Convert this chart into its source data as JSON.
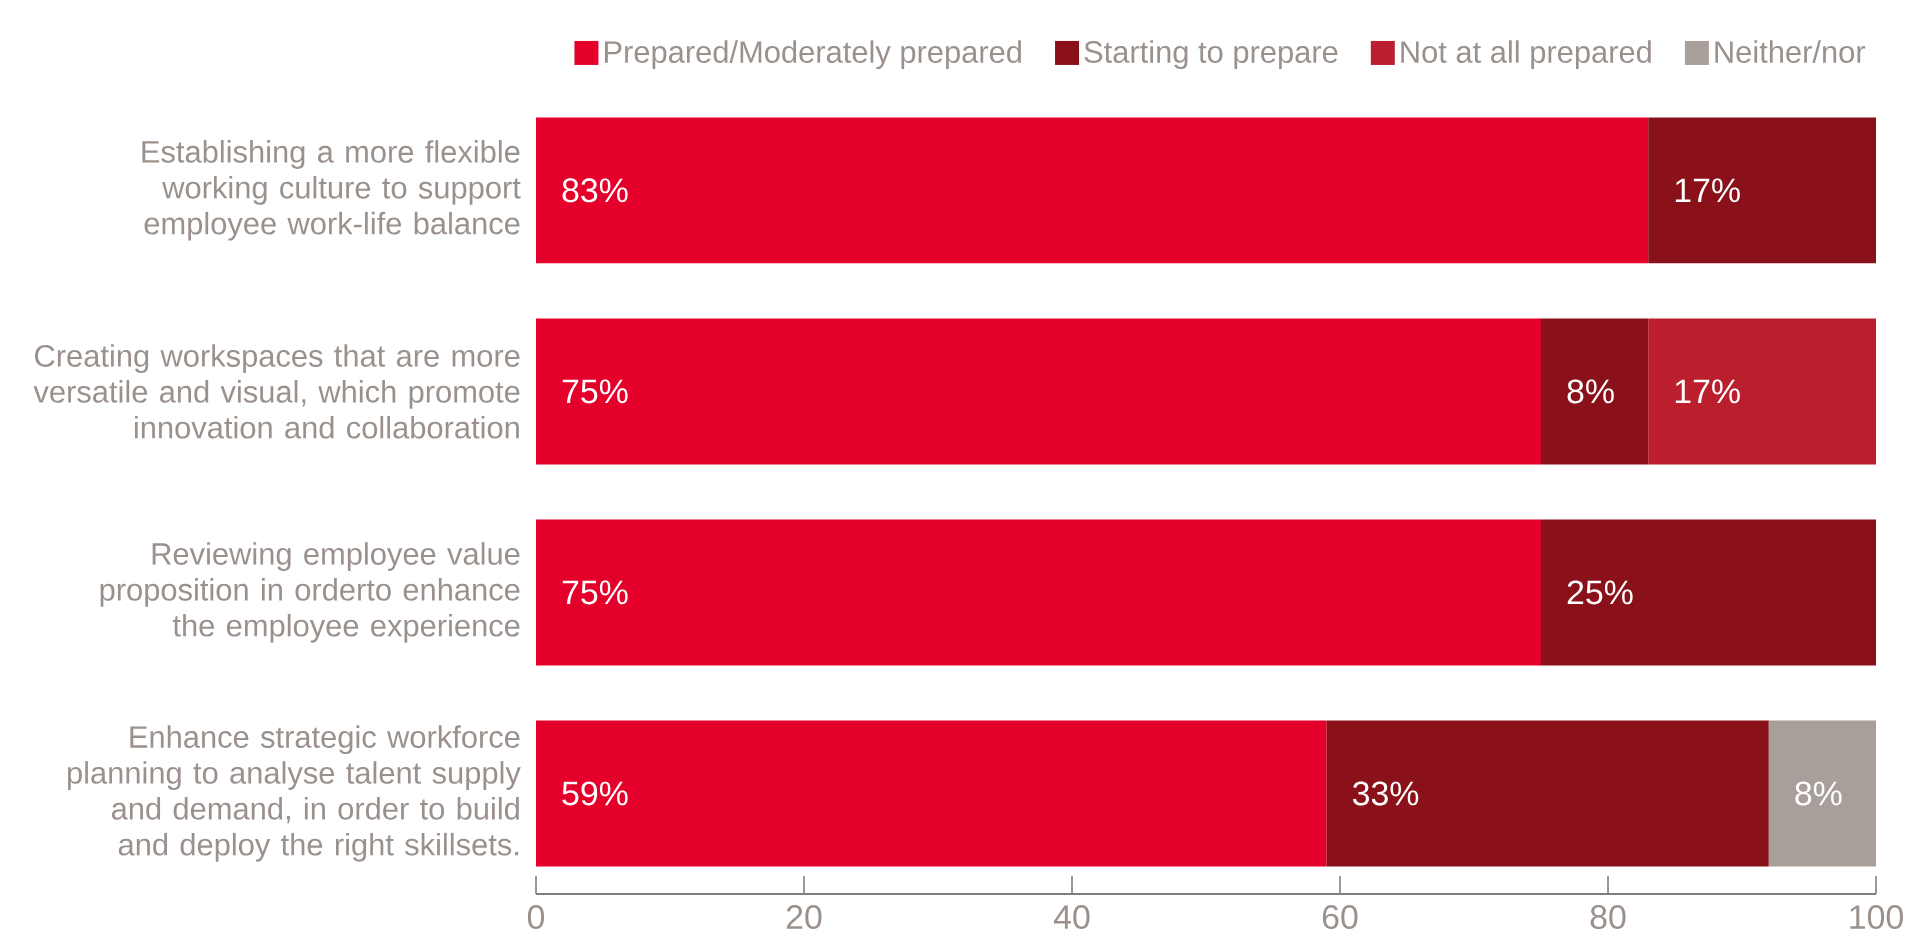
{
  "chart_data": {
    "type": "bar",
    "orientation": "horizontal",
    "stacked": true,
    "categories": [
      "Establishing a more flexible working culture to support employee work-life balance",
      "Creating workspaces that are more versatile and visual, which promote innovation and collaboration",
      "Reviewing employee value proposition in orderto enhance the employee experience",
      "Enhance strategic workforce planning to analyse talent supply and demand, in order to build and deploy the right skillsets."
    ],
    "series": [
      {
        "name": "Prepared/Moderately prepared",
        "color": "#e4002b",
        "values": [
          83,
          75,
          75,
          59
        ],
        "value_labels": [
          "83%",
          "75%",
          "75%",
          "59%"
        ]
      },
      {
        "name": "Starting to prepare",
        "color": "#8a1019",
        "values": [
          17,
          8,
          25,
          33
        ],
        "value_labels": [
          "17%",
          "8%",
          "25%",
          "33%"
        ]
      },
      {
        "name": "Not at all prepared",
        "color": "#bb1f2d",
        "values": [
          null,
          17,
          null,
          null
        ],
        "value_labels": [
          null,
          "17%",
          null,
          null
        ]
      },
      {
        "name": "Neither/nor",
        "color": "#a89f9a",
        "values": [
          null,
          null,
          null,
          8
        ],
        "value_labels": [
          null,
          null,
          null,
          "8%"
        ]
      }
    ],
    "xlim": [
      0,
      100
    ],
    "xticks": [
      0,
      20,
      40,
      60,
      80,
      100
    ],
    "legend": "top right"
  }
}
